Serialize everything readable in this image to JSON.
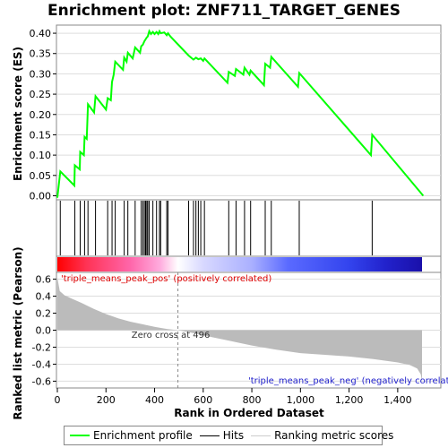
{
  "chart_data": {
    "type": "line",
    "title": "Enrichment plot: ZNF711_TARGET_GENES",
    "xlabel": "Rank in Ordered Dataset",
    "ylabel_top": "Enrichment score (ES)",
    "ylabel_bottom": "Ranked list metric (Pearson)",
    "xlim": [
      0,
      1500
    ],
    "x_ticks": [
      0,
      200,
      400,
      600,
      800,
      1000,
      1200,
      1400
    ],
    "x_tick_labels": [
      "0",
      "200",
      "400",
      "600",
      "800",
      "1,000",
      "1,200",
      "1,400"
    ],
    "es_ylim": [
      -0.01,
      0.42
    ],
    "es_ticks": [
      0.0,
      0.05,
      0.1,
      0.15,
      0.2,
      0.25,
      0.3,
      0.35,
      0.4
    ],
    "es_tick_labels": [
      "0.00",
      "0.05",
      "0.10",
      "0.15",
      "0.20",
      "0.25",
      "0.30",
      "0.35",
      "0.40"
    ],
    "metric_ylim": [
      -0.68,
      0.68
    ],
    "metric_ticks": [
      0.6,
      0.4,
      0.2,
      0.0,
      -0.2,
      -0.4,
      -0.6
    ],
    "metric_tick_labels": [
      "0.6",
      "0.4",
      "0.2",
      "0.0",
      "-0.2",
      "-0.4",
      "-0.6"
    ],
    "series": [
      {
        "name": "Enrichment profile",
        "color": "#00ff00",
        "x": [
          0,
          12,
          70,
          72,
          92,
          94,
          109,
          112,
          121,
          126,
          151,
          157,
          200,
          207,
          220,
          225,
          232,
          238,
          270,
          275,
          285,
          290,
          310,
          320,
          340,
          345,
          352,
          358,
          363,
          368,
          372,
          378,
          385,
          393,
          400,
          408,
          415,
          420,
          425,
          440,
          450,
          455,
          465,
          540,
          560,
          570,
          580,
          590,
          600,
          605,
          700,
          705,
          730,
          735,
          765,
          770,
          790,
          795,
          850,
          855,
          875,
          880,
          990,
          995,
          1290,
          1295,
          1505
        ],
        "y": [
          -0.005,
          0.06,
          0.025,
          0.075,
          0.065,
          0.108,
          0.1,
          0.145,
          0.14,
          0.225,
          0.205,
          0.245,
          0.212,
          0.24,
          0.235,
          0.28,
          0.298,
          0.33,
          0.31,
          0.34,
          0.33,
          0.352,
          0.338,
          0.365,
          0.352,
          0.368,
          0.372,
          0.38,
          0.385,
          0.39,
          0.392,
          0.405,
          0.398,
          0.403,
          0.398,
          0.403,
          0.398,
          0.405,
          0.4,
          0.402,
          0.395,
          0.4,
          0.392,
          0.345,
          0.335,
          0.34,
          0.336,
          0.338,
          0.332,
          0.338,
          0.278,
          0.305,
          0.295,
          0.312,
          0.298,
          0.315,
          0.298,
          0.308,
          0.272,
          0.325,
          0.315,
          0.342,
          0.268,
          0.302,
          0.1,
          0.15,
          0.0
        ]
      },
      {
        "name": "Hits",
        "color": "#000000",
        "hits": [
          12,
          72,
          94,
          112,
          126,
          157,
          207,
          225,
          238,
          275,
          290,
          320,
          345,
          352,
          358,
          363,
          368,
          372,
          378,
          393,
          408,
          420,
          425,
          450,
          455,
          540,
          560,
          570,
          580,
          590,
          605,
          705,
          735,
          770,
          795,
          855,
          880,
          995,
          1295
        ]
      },
      {
        "name": "Ranking metric scores",
        "color": "#bbbbbb",
        "x": [
          0,
          10,
          30,
          60,
          100,
          150,
          200,
          250,
          300,
          350,
          400,
          450,
          496,
          550,
          600,
          700,
          800,
          900,
          1000,
          1100,
          1200,
          1300,
          1400,
          1450,
          1480,
          1495,
          1500
        ],
        "y": [
          0.62,
          0.46,
          0.41,
          0.37,
          0.32,
          0.25,
          0.19,
          0.14,
          0.1,
          0.07,
          0.04,
          0.015,
          0.0,
          -0.03,
          -0.06,
          -0.12,
          -0.18,
          -0.23,
          -0.27,
          -0.29,
          -0.31,
          -0.34,
          -0.38,
          -0.41,
          -0.45,
          -0.52,
          -0.6
        ]
      }
    ],
    "annotations": {
      "pos_label": "'triple_means_peak_pos' (positively correlated)",
      "neg_label": "'triple_means_peak_neg' (negatively correlated)",
      "zero_cross_label": "Zero cross at 496",
      "zero_cross_x": 496
    },
    "colorbar": {
      "stops": [
        {
          "x": 0,
          "color": "#ff0000"
        },
        {
          "x": 120,
          "color": "#ff3355"
        },
        {
          "x": 300,
          "color": "#ff66aa"
        },
        {
          "x": 420,
          "color": "#ffaadd"
        },
        {
          "x": 496,
          "color": "#ffffff"
        },
        {
          "x": 600,
          "color": "#d8d8ff"
        },
        {
          "x": 800,
          "color": "#aab0ff"
        },
        {
          "x": 950,
          "color": "#5a6aff"
        },
        {
          "x": 1200,
          "color": "#3344ee"
        },
        {
          "x": 1350,
          "color": "#2222cc"
        },
        {
          "x": 1500,
          "color": "#1a10aa"
        }
      ]
    },
    "legend": {
      "placement": "bottom",
      "items": [
        "Enrichment profile",
        "Hits",
        "Ranking metric scores"
      ]
    }
  }
}
